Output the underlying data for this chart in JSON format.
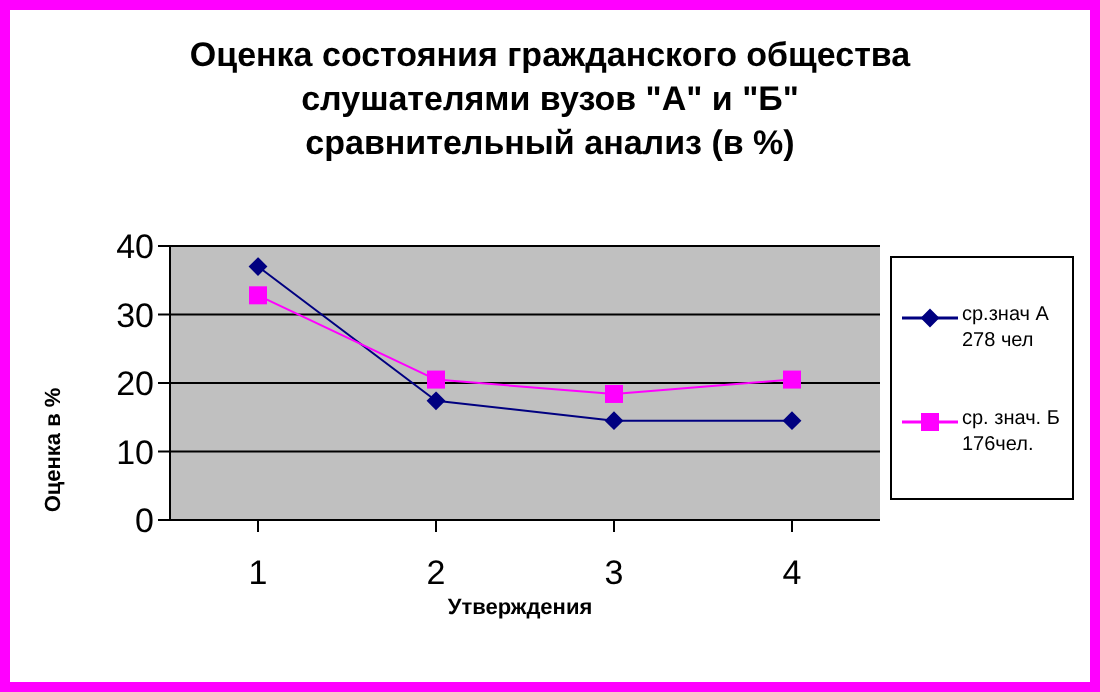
{
  "chart_data": {
    "type": "line",
    "title": "Оценка состояния гражданского общества\nслушателями вузов \"А\" и \"Б\"\nсравнительный анализ (в %)",
    "xlabel": "Утверждения",
    "ylabel": "Оценка в %",
    "categories": [
      "1",
      "2",
      "3",
      "4"
    ],
    "series": [
      {
        "name": "ср.знач А 278 чел",
        "color": "#000080",
        "marker": "diamond",
        "values": [
          37,
          17.4,
          14.5,
          14.5
        ]
      },
      {
        "name": "ср. знач. Б 176чел.",
        "color": "#ff00ff",
        "marker": "square",
        "values": [
          32.8,
          20.5,
          18.4,
          20.5
        ]
      }
    ],
    "ylim": [
      0,
      40
    ],
    "yticks": [
      0,
      10,
      20,
      30,
      40
    ],
    "grid": "y",
    "legend": "right"
  }
}
